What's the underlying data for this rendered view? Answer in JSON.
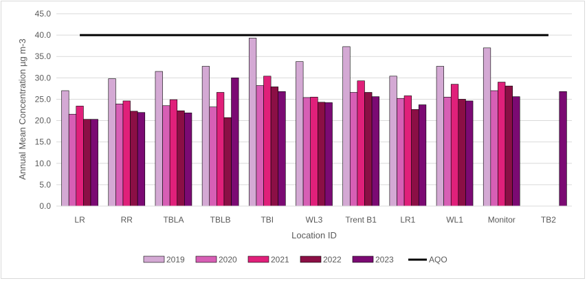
{
  "chart_data": {
    "type": "bar",
    "categories": [
      "LR",
      "RR",
      "TBLA",
      "TBLB",
      "TBI",
      "WL3",
      "Trent B1",
      "LR1",
      "WL1",
      "Monitor",
      "TB2"
    ],
    "series": [
      {
        "name": "2019",
        "color": "#d4a9d4",
        "values": [
          27.0,
          29.8,
          31.5,
          32.7,
          39.3,
          33.8,
          37.3,
          30.4,
          32.7,
          37.0,
          null
        ]
      },
      {
        "name": "2020",
        "color": "#d75fb5",
        "values": [
          21.5,
          23.9,
          23.5,
          23.2,
          28.2,
          25.4,
          26.6,
          25.2,
          25.5,
          27.0,
          null
        ]
      },
      {
        "name": "2021",
        "color": "#e0207a",
        "values": [
          23.4,
          24.6,
          24.9,
          26.6,
          30.4,
          25.5,
          29.3,
          25.8,
          28.5,
          29.0,
          null
        ]
      },
      {
        "name": "2022",
        "color": "#8b0f45",
        "values": [
          20.3,
          22.2,
          22.3,
          20.7,
          27.9,
          24.3,
          26.6,
          22.6,
          25.0,
          28.1,
          null
        ]
      },
      {
        "name": "2023",
        "color": "#7b0a73",
        "values": [
          20.3,
          21.9,
          21.8,
          30.0,
          26.8,
          24.2,
          25.6,
          23.7,
          24.6,
          25.6,
          26.8
        ]
      }
    ],
    "line": {
      "name": "AQO",
      "value": 40.0,
      "color": "#000000"
    },
    "xlabel": "Location ID",
    "ylabel": "Annual Mean Concentration µg m-3",
    "ylim": [
      0,
      45
    ],
    "yticks": [
      "0.0",
      "5.0",
      "10.0",
      "15.0",
      "20.0",
      "25.0",
      "30.0",
      "35.0",
      "40.0",
      "45.0"
    ],
    "grid": true,
    "legend_position": "bottom"
  }
}
